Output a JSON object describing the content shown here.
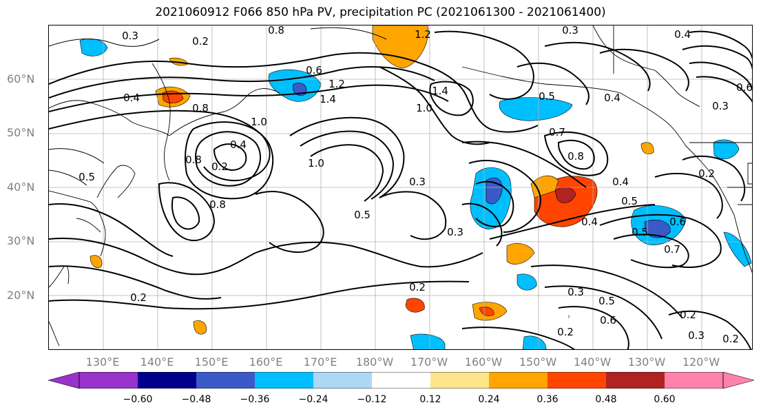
{
  "title": "2021060912 F066 850 hPa PV, precipitation PC (2021061300 - 2021061400)",
  "lat_labels": [
    "60°N",
    "50°N",
    "40°N",
    "30°N",
    "20°N"
  ],
  "lon_labels": [
    "130°E",
    "140°E",
    "150°E",
    "160°E",
    "170°E",
    "180°W",
    "170°W",
    "160°W",
    "150°W",
    "140°W",
    "130°W",
    "120°W"
  ],
  "contour_labels": [
    "0.3",
    "0.2",
    "0.8",
    "1.2",
    "0.3",
    "0.4",
    "0.6",
    "0.6",
    "0.4",
    "1.2",
    "1.4",
    "1.4",
    "1.0",
    "0.5",
    "0.4",
    "0.8",
    "0.3",
    "1.0",
    "0.4",
    "0.2",
    "0.8",
    "0.7",
    "0.8",
    "0.4",
    "0.5",
    "0.2",
    "0.3",
    "1.0",
    "0.5",
    "0.8",
    "0.5",
    "0.4",
    "0.5",
    "0.6",
    "0.7",
    "0.3",
    "0.2",
    "0.2",
    "0.3",
    "0.5",
    "0.6",
    "0.2",
    "0.3",
    "0.2",
    "0.2"
  ],
  "colorbar": {
    "colors": [
      "#9932cc",
      "#00008b",
      "#3a5bc7",
      "#00bfff",
      "#add8f5",
      "#ffffff",
      "#fde68a",
      "#ffa500",
      "#ff4500",
      "#b22222",
      "#ff82ab"
    ],
    "tick_labels": [
      "−0.60",
      "−0.48",
      "−0.36",
      "−0.24",
      "−0.12",
      "0.12",
      "0.24",
      "0.36",
      "0.48",
      "0.60"
    ]
  }
}
